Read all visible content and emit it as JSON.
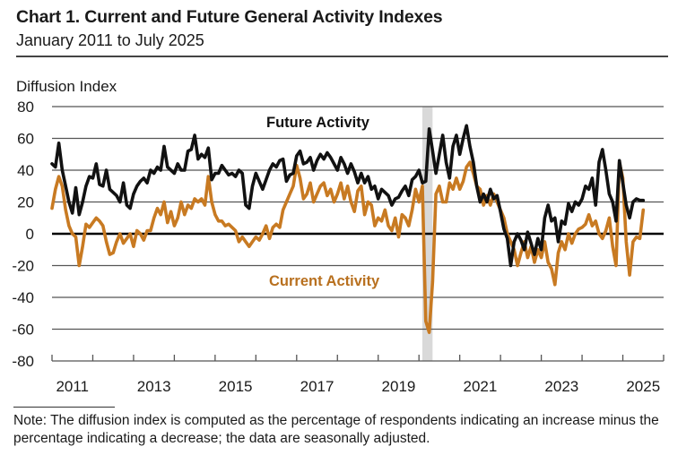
{
  "chart_data": {
    "type": "line",
    "title": "Chart 1. Current and Future General Activity Indexes",
    "subtitle": "January 2011 to July 2025",
    "ylabel": "Diffusion Index",
    "xlabel": "",
    "ylim": [
      -80,
      80
    ],
    "yticks": [
      80,
      60,
      40,
      20,
      0,
      -20,
      -40,
      -60,
      -80
    ],
    "ytick_labels": [
      "80",
      "60",
      "40",
      "20",
      "0",
      "-20",
      "-40",
      "-60",
      "-80"
    ],
    "xlim": [
      "2011-01",
      "2025-12"
    ],
    "xtick_labels": [
      "2011",
      "2013",
      "2015",
      "2017",
      "2019",
      "2021",
      "2023",
      "2025"
    ],
    "grid": true,
    "legend": "inline labels",
    "start": "2011-01",
    "frequency": "monthly",
    "shaded_periods": [
      {
        "label": "recession",
        "start": "2020-02",
        "end": "2020-04"
      }
    ],
    "series": [
      {
        "name": "Future Activity",
        "color": "#111111",
        "values": [
          44,
          42,
          57,
          40,
          30,
          20,
          13,
          29,
          12,
          20,
          30,
          36,
          35,
          44,
          31,
          30,
          40,
          28,
          26,
          24,
          20,
          32,
          18,
          16,
          25,
          30,
          33,
          35,
          32,
          40,
          38,
          42,
          40,
          55,
          42,
          40,
          38,
          44,
          40,
          40,
          52,
          53,
          62,
          47,
          50,
          48,
          54,
          34,
          38,
          38,
          43,
          40,
          37,
          38,
          36,
          40,
          38,
          18,
          16,
          30,
          38,
          33,
          28,
          34,
          40,
          44,
          42,
          46,
          47,
          33,
          37,
          38,
          49,
          52,
          44,
          45,
          48,
          40,
          46,
          50,
          47,
          51,
          48,
          44,
          40,
          48,
          44,
          38,
          44,
          39,
          32,
          38,
          32,
          36,
          28,
          30,
          22,
          28,
          26,
          24,
          18,
          22,
          23,
          27,
          30,
          24,
          34,
          36,
          40,
          32,
          33,
          66,
          52,
          38,
          50,
          62,
          45,
          35,
          55,
          62,
          50,
          60,
          68,
          55,
          45,
          30,
          20,
          25,
          20,
          28,
          22,
          24,
          14,
          3,
          -3,
          -20,
          -5,
          0,
          -4,
          -10,
          1,
          -6,
          -13,
          -3,
          -10,
          10,
          18,
          8,
          10,
          -5,
          8,
          6,
          19,
          14,
          20,
          18,
          22,
          30,
          28,
          35,
          18,
          45,
          53,
          40,
          25,
          20,
          8,
          46,
          32,
          18,
          10,
          20,
          22,
          21,
          21
        ]
      },
      {
        "name": "Current Activity",
        "color": "#c87a22",
        "values": [
          16,
          28,
          36,
          30,
          15,
          5,
          0,
          -2,
          -20,
          -8,
          6,
          4,
          7,
          10,
          8,
          5,
          -5,
          -13,
          -12,
          -5,
          0,
          -6,
          -3,
          0,
          -8,
          2,
          0,
          -4,
          2,
          2,
          10,
          16,
          12,
          20,
          7,
          14,
          5,
          10,
          20,
          12,
          18,
          16,
          22,
          20,
          22,
          18,
          36,
          20,
          12,
          8,
          8,
          5,
          6,
          4,
          2,
          -5,
          -2,
          -5,
          -8,
          -5,
          -2,
          -4,
          0,
          5,
          -3,
          4,
          6,
          4,
          15,
          20,
          25,
          30,
          43,
          35,
          22,
          25,
          32,
          20,
          25,
          30,
          32,
          24,
          28,
          20,
          25,
          32,
          22,
          30,
          20,
          14,
          27,
          30,
          12,
          20,
          18,
          5,
          10,
          8,
          15,
          5,
          2,
          10,
          -2,
          12,
          10,
          5,
          15,
          28,
          20,
          30,
          -55,
          -62,
          -30,
          25,
          30,
          20,
          20,
          32,
          28,
          35,
          28,
          33,
          42,
          45,
          38,
          30,
          28,
          18,
          24,
          18,
          25,
          20,
          15,
          10,
          0,
          -5,
          -10,
          -20,
          -12,
          -5,
          -15,
          -8,
          -18,
          -10,
          -15,
          -5,
          -18,
          -22,
          -32,
          -12,
          -5,
          -10,
          0,
          -6,
          0,
          3,
          4,
          6,
          12,
          5,
          8,
          0,
          -3,
          2,
          10,
          -8,
          -20,
          45,
          35,
          -5,
          -26,
          -5,
          -2,
          -3,
          15
        ]
      }
    ],
    "annotations": [
      "Future Activity",
      "Current Activity"
    ],
    "note": "Note: The diffusion index is computed as the percentage of respondents indicating an increase minus the percentage indicating a decrease; the data are seasonally adjusted."
  },
  "colors": {
    "future_line": "#111111",
    "current_line": "#c87a22",
    "current_label": "#b8701f",
    "recession_shade": "#d9d9d9",
    "gridline": "#555555"
  }
}
